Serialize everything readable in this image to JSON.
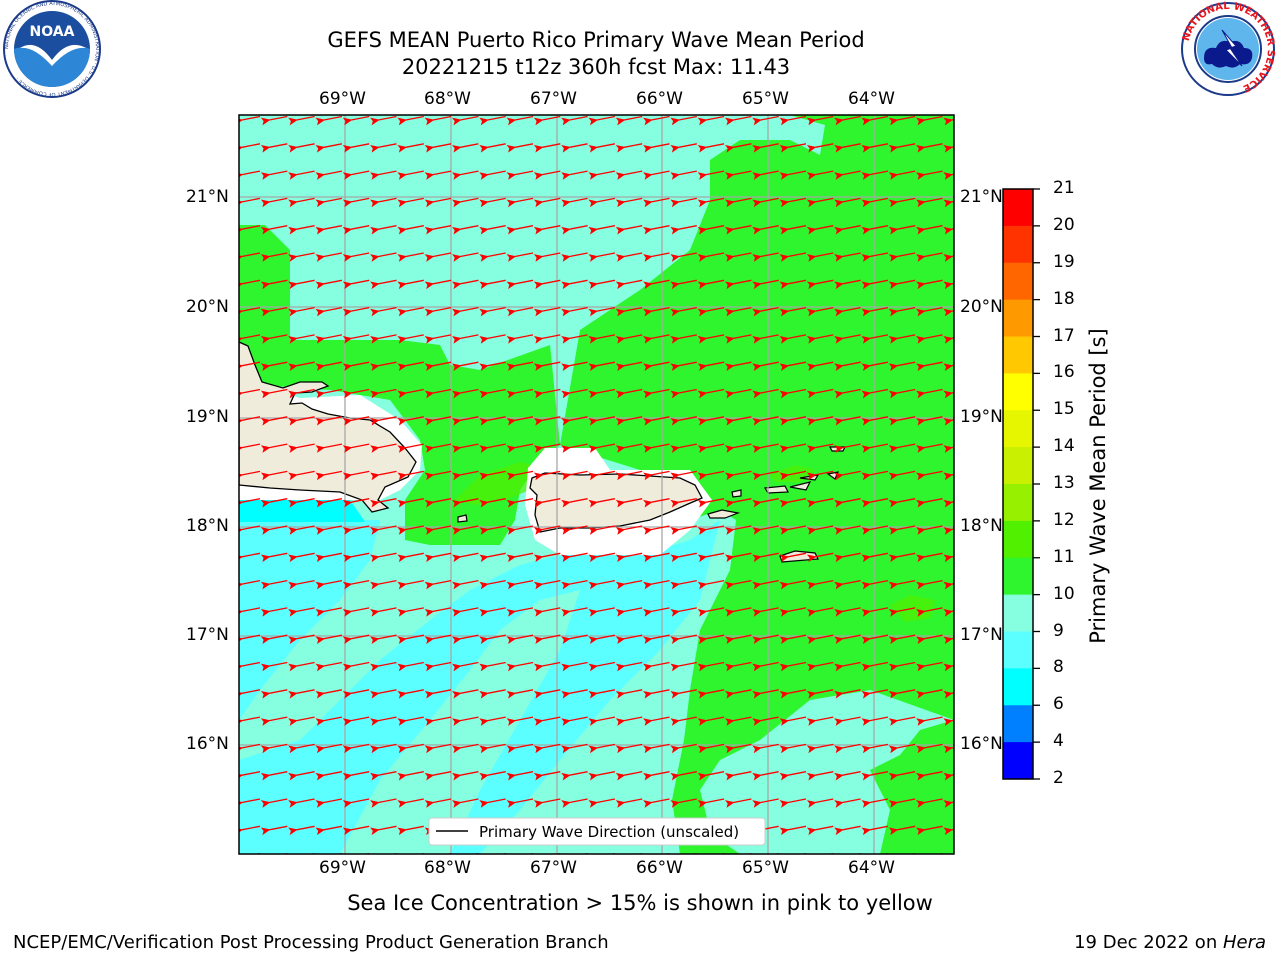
{
  "header": {
    "title_line1": "GEFS MEAN Puerto Rico Primary Wave Mean Period",
    "title_line2": "20221215 t12z 360h fcst   Max: 11.43"
  },
  "logos": {
    "left": "noaa-logo",
    "right": "nws-logo",
    "noaa_text": "NOAA",
    "noaa_ring": "NATIONAL OCEANIC AND ATMOSPHERIC ADMINISTRATION · U.S. DEPARTMENT OF COMMERCE ·",
    "nws_ring": "NATIONAL WEATHER SERVICE"
  },
  "map": {
    "lon_labels": [
      "69°W",
      "68°W",
      "67°W",
      "66°W",
      "65°W",
      "64°W"
    ],
    "lat_labels": [
      "21°N",
      "20°N",
      "19°N",
      "18°N",
      "17°N",
      "16°N"
    ],
    "legend_label": "Primary Wave Direction (unscaled)",
    "arrow_color": "#ff0000",
    "land_color": "#f0ecdc"
  },
  "colorbar": {
    "label": "Primary Wave Mean Period [s]",
    "ticks": [
      "21",
      "20",
      "19",
      "18",
      "17",
      "16",
      "15",
      "14",
      "13",
      "12",
      "11",
      "10",
      "9",
      "8",
      "6",
      "4",
      "2"
    ],
    "colors": [
      "#ff0000",
      "#ff3300",
      "#ff6600",
      "#ff9900",
      "#ffc800",
      "#ffff00",
      "#e6f500",
      "#c8f000",
      "#96f000",
      "#50f000",
      "#2ef52e",
      "#86ffe0",
      "#5cffff",
      "#00ffff",
      "#0080ff",
      "#0000ff"
    ]
  },
  "caption": "Sea Ice Concentration > 15% is shown in pink to yellow",
  "footer": {
    "left": "NCEP/EMC/Verification Post Processing Product Generation Branch",
    "right_prefix": "19 Dec 2022 on ",
    "right_host": "Hera"
  }
}
